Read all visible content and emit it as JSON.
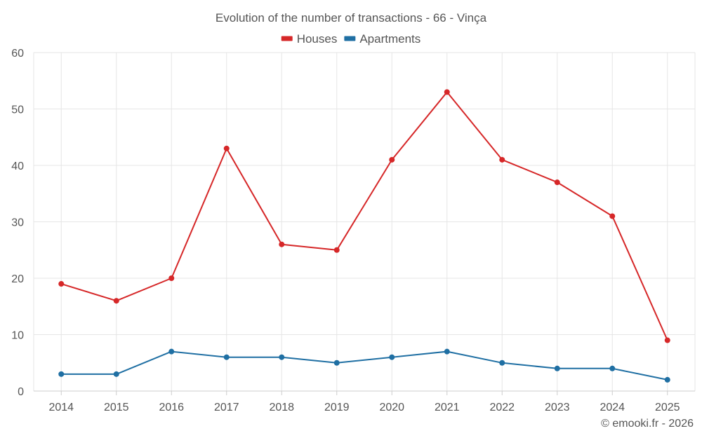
{
  "chart_data": {
    "type": "line",
    "title": "Evolution of the number of transactions - 66 - Vinça",
    "xlabel": "",
    "ylabel": "",
    "categories": [
      "2014",
      "2015",
      "2016",
      "2017",
      "2018",
      "2019",
      "2020",
      "2021",
      "2022",
      "2023",
      "2024",
      "2025"
    ],
    "ylim": [
      0,
      60
    ],
    "yticks": [
      0,
      10,
      20,
      30,
      40,
      50,
      60
    ],
    "grid": true,
    "legend_position": "top-center",
    "series": [
      {
        "name": "Houses",
        "color": "#d62728",
        "values": [
          19,
          16,
          20,
          43,
          26,
          25,
          41,
          53,
          41,
          37,
          31,
          9
        ]
      },
      {
        "name": "Apartments",
        "color": "#1f6fa3",
        "values": [
          3,
          3,
          7,
          6,
          6,
          5,
          6,
          7,
          5,
          4,
          4,
          2
        ]
      }
    ]
  },
  "footer": {
    "copyright": "© emooki.fr - 2026"
  }
}
